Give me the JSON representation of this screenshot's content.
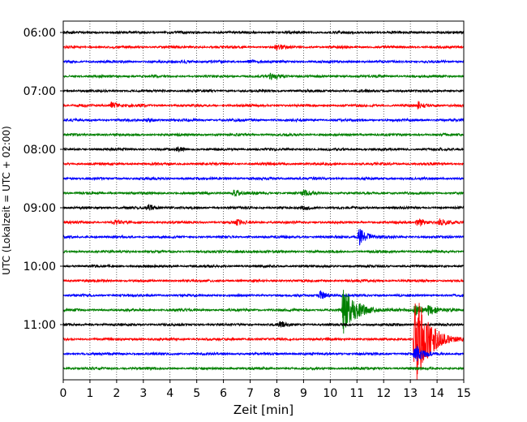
{
  "chart_data": {
    "type": "line",
    "title": "",
    "xlabel": "Zeit  [min]",
    "ylabel": "UTC (Lokalzeit = UTC + 02:00)",
    "xlim": [
      0,
      15
    ],
    "x_ticks": [
      "0",
      "1",
      "2",
      "3",
      "4",
      "5",
      "6",
      "7",
      "8",
      "9",
      "10",
      "11",
      "12",
      "13",
      "14",
      "15"
    ],
    "y_tick_labels": [
      "06:00",
      "07:00",
      "08:00",
      "09:00",
      "10:00",
      "11:00"
    ],
    "grid": "vertical dotted at each minute",
    "trace_interval_minutes": 15,
    "traces": [
      {
        "start": "06:00",
        "color": "#000000",
        "events": []
      },
      {
        "start": "06:15",
        "color": "#ff0000",
        "events": [
          {
            "t": 8.0,
            "amp": 3
          }
        ]
      },
      {
        "start": "06:30",
        "color": "#0000ff",
        "events": [
          {
            "t": 4.5,
            "amp": 2
          },
          {
            "t": 7.0,
            "amp": 2
          }
        ]
      },
      {
        "start": "06:45",
        "color": "#008000",
        "events": [
          {
            "t": 7.8,
            "amp": 4
          }
        ]
      },
      {
        "start": "07:00",
        "color": "#000000",
        "events": []
      },
      {
        "start": "07:15",
        "color": "#ff0000",
        "events": [
          {
            "t": 1.8,
            "amp": 4
          },
          {
            "t": 13.3,
            "amp": 4
          }
        ]
      },
      {
        "start": "07:30",
        "color": "#0000ff",
        "events": [
          {
            "t": 3.2,
            "amp": 2
          }
        ]
      },
      {
        "start": "07:45",
        "color": "#008000",
        "events": []
      },
      {
        "start": "08:00",
        "color": "#000000",
        "events": [
          {
            "t": 4.3,
            "amp": 2
          }
        ]
      },
      {
        "start": "08:15",
        "color": "#ff0000",
        "events": []
      },
      {
        "start": "08:30",
        "color": "#0000ff",
        "events": []
      },
      {
        "start": "08:45",
        "color": "#008000",
        "events": [
          {
            "t": 6.4,
            "amp": 4
          },
          {
            "t": 9.0,
            "amp": 3
          }
        ]
      },
      {
        "start": "09:00",
        "color": "#000000",
        "events": [
          {
            "t": 3.2,
            "amp": 4
          },
          {
            "t": 9.0,
            "amp": 2
          }
        ]
      },
      {
        "start": "09:15",
        "color": "#ff0000",
        "events": [
          {
            "t": 1.9,
            "amp": 3
          },
          {
            "t": 6.5,
            "amp": 3
          },
          {
            "t": 13.3,
            "amp": 5
          },
          {
            "t": 14.1,
            "amp": 4
          }
        ]
      },
      {
        "start": "09:30",
        "color": "#0000ff",
        "events": [
          {
            "t": 11.1,
            "amp": 12
          }
        ]
      },
      {
        "start": "09:45",
        "color": "#008000",
        "events": [
          {
            "t": 6.5,
            "amp": 2
          }
        ]
      },
      {
        "start": "10:00",
        "color": "#000000",
        "events": []
      },
      {
        "start": "10:15",
        "color": "#ff0000",
        "events": []
      },
      {
        "start": "10:30",
        "color": "#0000ff",
        "events": [
          {
            "t": 9.6,
            "amp": 6
          }
        ]
      },
      {
        "start": "10:45",
        "color": "#008000",
        "events": [
          {
            "t": 10.5,
            "amp": 30
          },
          {
            "t": 13.2,
            "amp": 8
          },
          {
            "t": 13.7,
            "amp": 6
          }
        ]
      },
      {
        "start": "11:00",
        "color": "#000000",
        "events": [
          {
            "t": 8.1,
            "amp": 3
          }
        ]
      },
      {
        "start": "11:15",
        "color": "#ff0000",
        "events": [
          {
            "t": 13.2,
            "amp": 62
          }
        ]
      },
      {
        "start": "11:30",
        "color": "#0000ff",
        "events": [
          {
            "t": 13.2,
            "amp": 12
          }
        ]
      },
      {
        "start": "11:45",
        "color": "#008000",
        "events": []
      }
    ]
  }
}
